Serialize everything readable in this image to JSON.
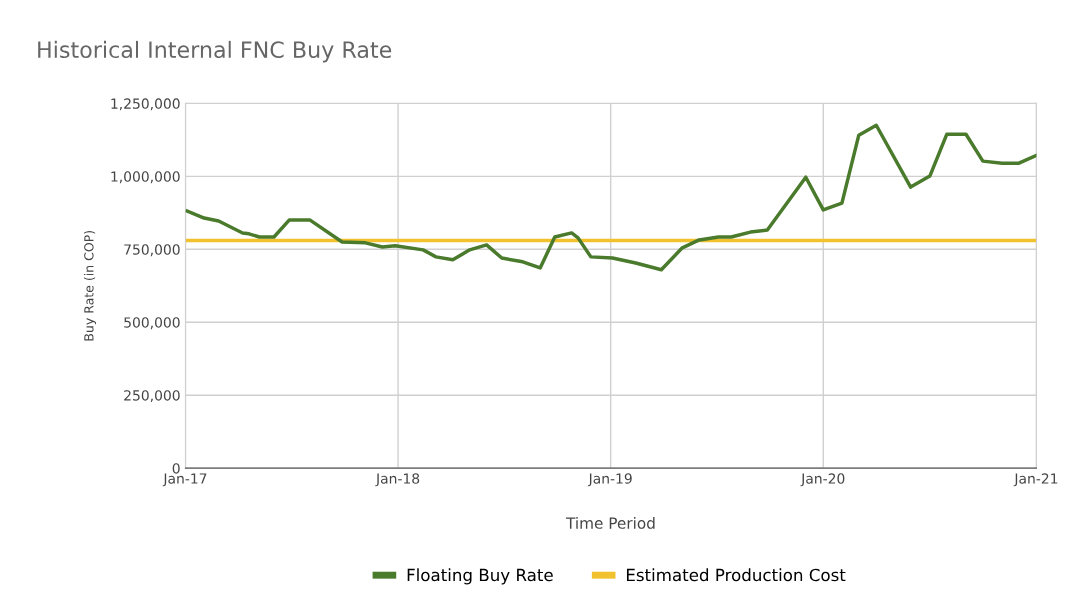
{
  "chart_data": {
    "type": "line",
    "title": "Historical Internal FNC Buy Rate",
    "xlabel": "Time Period",
    "ylabel": "Buy Rate (in COP)",
    "xlim": [
      "2017-01-01",
      "2021-01-01"
    ],
    "xticks": [
      {
        "value": "2017-01-01",
        "label": "Jan-17"
      },
      {
        "value": "2018-01-01",
        "label": "Jan-18"
      },
      {
        "value": "2019-01-01",
        "label": "Jan-19"
      },
      {
        "value": "2020-01-01",
        "label": "Jan-20"
      },
      {
        "value": "2021-01-01",
        "label": "Jan-21"
      }
    ],
    "ylim": [
      0,
      1250000
    ],
    "yticks": [
      {
        "value": 0,
        "label": "0"
      },
      {
        "value": 250000,
        "label": "250,000"
      },
      {
        "value": 500000,
        "label": "500,000"
      },
      {
        "value": 750000,
        "label": "750,000"
      },
      {
        "value": 1000000,
        "label": "1,000,000"
      },
      {
        "value": 1250000,
        "label": "1,250,000"
      }
    ],
    "grid": true,
    "legend": "bottom",
    "series": [
      {
        "name": "Floating Buy Rate",
        "color": "#4a7a2c",
        "x": [
          "2017-01-04",
          "2017-02-02",
          "2017-02-27",
          "2017-04-09",
          "2017-04-20",
          "2017-05-08",
          "2017-06-02",
          "2017-06-28",
          "2017-08-03",
          "2017-09-27",
          "2017-11-06",
          "2017-12-05",
          "2017-12-27",
          "2018-02-13",
          "2018-03-07",
          "2018-04-05",
          "2018-05-04",
          "2018-06-02",
          "2018-06-28",
          "2018-08-03",
          "2018-09-02",
          "2018-09-27",
          "2018-10-26",
          "2018-11-06",
          "2018-11-28",
          "2019-01-04",
          "2019-02-13",
          "2019-03-29",
          "2019-05-04",
          "2019-06-02",
          "2019-07-05",
          "2019-07-27",
          "2019-08-29",
          "2019-09-27",
          "2019-12-02",
          "2020-01-01",
          "2020-02-02",
          "2020-03-02",
          "2020-04-01",
          "2020-05-30",
          "2020-07-02",
          "2020-07-31",
          "2020-09-02",
          "2020-10-01",
          "2020-11-03",
          "2020-12-02",
          "2021-01-01"
        ],
        "values": [
          881000,
          857000,
          847000,
          806000,
          803000,
          792000,
          792000,
          850000,
          850000,
          775000,
          772000,
          758000,
          762000,
          748000,
          724000,
          714000,
          748000,
          765000,
          720000,
          707000,
          686000,
          792000,
          806000,
          789000,
          724000,
          720000,
          703000,
          680000,
          755000,
          782000,
          792000,
          792000,
          809000,
          816000,
          997000,
          885000,
          908000,
          1141000,
          1175000,
          963000,
          1001000,
          1144000,
          1144000,
          1052000,
          1045000,
          1045000,
          1072000
        ]
      },
      {
        "name": "Estimated Production Cost",
        "color": "#f2c12e",
        "x": [
          "2017-01-01",
          "2021-01-01"
        ],
        "values": [
          780000,
          780000
        ]
      }
    ]
  }
}
